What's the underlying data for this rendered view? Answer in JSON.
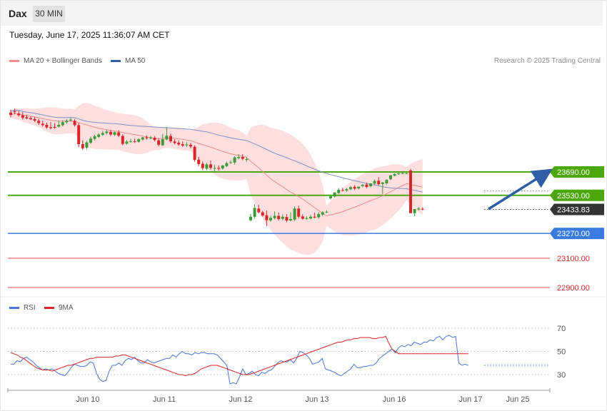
{
  "header": {
    "symbol": "Dax",
    "timeframe": "30 MIN",
    "datetime": "Tuesday, June 17, 2025 11:36:07 AM CET"
  },
  "legend": {
    "ma20_label": "MA 20 + Bollinger Bands",
    "ma50_label": "MA 50",
    "credit": "Research © 2025 Trading Central",
    "rsi_label": "RSI",
    "rsi_ma_label": "9MA"
  },
  "colors": {
    "up": "#3d9b35",
    "down": "#d9262a",
    "bollinger_fill": "#fdd9da",
    "ma20": "#f08c8c",
    "ma50": "#7f8fc4",
    "resistance": "#4ca70a",
    "support": "#3a7be0",
    "lower_support": "#e98888",
    "last_price": "#333333",
    "arrow": "#2e5ea6"
  },
  "chart_data": [
    {
      "type": "line",
      "title": "",
      "x_ticks": [
        "Jun 10",
        "Jun 11",
        "Jun 12",
        "Jun 13",
        "Jun 16",
        "Jun 17",
        "Jun 25"
      ],
      "levels": [
        {
          "name": "resistance-2",
          "value": 23690.0,
          "label": "23690.00",
          "style": "resistance"
        },
        {
          "name": "resistance-1",
          "value": 23530.0,
          "label": "23530.00",
          "style": "resistance"
        },
        {
          "name": "last-price",
          "value": 23433.83,
          "label": "23433.83",
          "style": "last"
        },
        {
          "name": "support-1",
          "value": 23270.0,
          "label": "23270.00",
          "style": "support"
        },
        {
          "name": "support-2",
          "value": 23100.0,
          "label": "23100.00",
          "style": "lower"
        },
        {
          "name": "support-3",
          "value": 22900.0,
          "label": "22900.00",
          "style": "lower"
        }
      ],
      "ylim": [
        22880,
        24160
      ],
      "candles": [
        [
          24096,
          24116,
          24080,
          24064
        ],
        [
          24106,
          24123,
          24098,
          24084
        ],
        [
          24090,
          24108,
          24078,
          24068
        ],
        [
          24078,
          24100,
          24060,
          24048
        ],
        [
          24064,
          24082,
          24056,
          24050
        ],
        [
          24058,
          24070,
          24050,
          24044
        ],
        [
          24052,
          24068,
          24040,
          24032
        ],
        [
          24040,
          24054,
          24024,
          24012
        ],
        [
          24020,
          24040,
          24010,
          24000
        ],
        [
          24012,
          24028,
          23994,
          23986
        ],
        [
          23996,
          24032,
          23990,
          23982
        ],
        [
          23998,
          24024,
          23992,
          23986
        ],
        [
          24000,
          24040,
          24012,
          23994
        ],
        [
          24010,
          24044,
          24030,
          24002
        ],
        [
          24030,
          24050,
          24040,
          24020
        ],
        [
          24042,
          24060,
          24048,
          24034
        ],
        [
          24040,
          24052,
          24010,
          24000
        ],
        [
          24010,
          24026,
          23880,
          23860
        ],
        [
          23880,
          23906,
          23852,
          23840
        ],
        [
          23856,
          23902,
          23892,
          23846
        ],
        [
          23890,
          23932,
          23918,
          23880
        ],
        [
          23916,
          23944,
          23934,
          23906
        ],
        [
          23930,
          23956,
          23946,
          23922
        ],
        [
          23944,
          23970,
          23956,
          23936
        ],
        [
          23956,
          23980,
          23966,
          23946
        ],
        [
          23964,
          23978,
          23946,
          23936
        ],
        [
          23944,
          23966,
          23962,
          23936
        ],
        [
          23960,
          23976,
          23938,
          23928
        ],
        [
          23936,
          23948,
          23882,
          23872
        ],
        [
          23884,
          23908,
          23898,
          23876
        ],
        [
          23896,
          23916,
          23900,
          23890
        ],
        [
          23900,
          23918,
          23896,
          23888
        ],
        [
          23896,
          23920,
          23914,
          23890
        ],
        [
          23912,
          23930,
          23926,
          23904
        ],
        [
          23926,
          23940,
          23920,
          23912
        ],
        [
          23920,
          23936,
          23926,
          23914
        ],
        [
          23924,
          23936,
          23908,
          23898
        ],
        [
          23906,
          23920,
          23876,
          23864
        ],
        [
          23872,
          23950,
          23914,
          23868
        ],
        [
          23912,
          23996,
          23938,
          23906
        ],
        [
          23936,
          23952,
          23900,
          23888
        ],
        [
          23898,
          23914,
          23888,
          23878
        ],
        [
          23890,
          23906,
          23878,
          23868
        ],
        [
          23880,
          23900,
          23870,
          23860
        ],
        [
          23872,
          23894,
          23878,
          23860
        ],
        [
          23876,
          23890,
          23864,
          23852
        ],
        [
          23862,
          23872,
          23772,
          23760
        ],
        [
          23774,
          23794,
          23744,
          23730
        ],
        [
          23746,
          23762,
          23716,
          23702
        ],
        [
          23712,
          23752,
          23742,
          23702
        ],
        [
          23742,
          23768,
          23718,
          23706
        ],
        [
          23718,
          23738,
          23718,
          23696
        ],
        [
          23718,
          23736,
          23712,
          23700
        ],
        [
          23714,
          23738,
          23734,
          23706
        ],
        [
          23730,
          23760,
          23750,
          23724
        ],
        [
          23752,
          23768,
          23756,
          23746
        ],
        [
          23754,
          23798,
          23790,
          23742
        ],
        [
          23784,
          23812,
          23792,
          23776
        ],
        [
          23792,
          23812,
          23780,
          23770
        ],
        [
          23772,
          23792,
          23778,
          23760
        ],
        [
          23360,
          23402,
          23384,
          23352
        ],
        [
          23384,
          23468,
          23444,
          23370
        ],
        [
          23440,
          23466,
          23414,
          23406
        ],
        [
          23414,
          23424,
          23392,
          23384
        ],
        [
          23394,
          23426,
          23360,
          23320
        ],
        [
          23360,
          23392,
          23376,
          23350
        ],
        [
          23374,
          23420,
          23390,
          23366
        ],
        [
          23390,
          23412,
          23368,
          23358
        ],
        [
          23370,
          23400,
          23384,
          23360
        ],
        [
          23382,
          23402,
          23358,
          23346
        ],
        [
          23358,
          23414,
          23368,
          23352
        ],
        [
          23364,
          23456,
          23440,
          23356
        ],
        [
          23440,
          23460,
          23384,
          23372
        ],
        [
          23386,
          23400,
          23370,
          23364
        ],
        [
          23372,
          23388,
          23374,
          23364
        ],
        [
          23372,
          23396,
          23384,
          23366
        ],
        [
          23384,
          23412,
          23378,
          23374
        ],
        [
          23380,
          23414,
          23402,
          23370
        ],
        [
          23398,
          23422,
          23414,
          23390
        ],
        [
          23414,
          23428,
          23418,
          23408
        ],
        [
          23510,
          23528,
          23524,
          23502
        ],
        [
          23522,
          23540,
          23550,
          23514
        ],
        [
          23546,
          23580,
          23568,
          23538
        ],
        [
          23566,
          23582,
          23564,
          23556
        ],
        [
          23564,
          23580,
          23572,
          23554
        ],
        [
          23572,
          23594,
          23586,
          23566
        ],
        [
          23588,
          23600,
          23576,
          23566
        ],
        [
          23578,
          23590,
          23590,
          23570
        ],
        [
          23594,
          23606,
          23602,
          23586
        ],
        [
          23604,
          23618,
          23588,
          23578
        ],
        [
          23592,
          23612,
          23612,
          23586
        ],
        [
          23610,
          23638,
          23628,
          23602
        ],
        [
          23630,
          23654,
          23606,
          23598
        ],
        [
          23608,
          23622,
          23618,
          23540
        ],
        [
          23612,
          23640,
          23636,
          23604
        ],
        [
          23640,
          23660,
          23668,
          23634
        ],
        [
          23664,
          23680,
          23676,
          23660
        ],
        [
          23676,
          23688,
          23680,
          23670
        ],
        [
          23678,
          23690,
          23682,
          23674
        ],
        [
          23680,
          23686,
          23680,
          23676
        ],
        [
          23700,
          23712,
          23408,
          23410
        ],
        [
          23408,
          23420,
          23436,
          23388
        ],
        [
          23434,
          23450,
          23440,
          23426
        ],
        [
          23438,
          23448,
          23433,
          23428
        ]
      ]
    },
    {
      "type": "line",
      "title": "",
      "series": [
        {
          "name": "RSI",
          "values": [
            39,
            39,
            42,
            41,
            44,
            45,
            43,
            41,
            38,
            36,
            34,
            35,
            34,
            35,
            33,
            31,
            30,
            29,
            32,
            36,
            39,
            38,
            37,
            37,
            38,
            41,
            40,
            31,
            26,
            24,
            25,
            33,
            38,
            38,
            40,
            38,
            42,
            44,
            43,
            45,
            42,
            40,
            40,
            43,
            41,
            40,
            41,
            42,
            43,
            44,
            44,
            47,
            45,
            48,
            50,
            48,
            48,
            47,
            49,
            48,
            49,
            49,
            48,
            48,
            48,
            47,
            44,
            41,
            38,
            22,
            23,
            22,
            28,
            35,
            30,
            31,
            33,
            30,
            29,
            32,
            31,
            33,
            34,
            37,
            40,
            42,
            41,
            41,
            43,
            40,
            44,
            50,
            49,
            47,
            44,
            39,
            40,
            41,
            44,
            35,
            34,
            33,
            32,
            30,
            29,
            31,
            33,
            35,
            39,
            36,
            36,
            37,
            37,
            38,
            38,
            40,
            44,
            46,
            48,
            50,
            52,
            49,
            53,
            55,
            54,
            56,
            55,
            58,
            57,
            56,
            58,
            58,
            60,
            59,
            62,
            63,
            60,
            63,
            64,
            62,
            63,
            40,
            38,
            39,
            38
          ]
        },
        {
          "name": "9MA",
          "values": [
            49,
            48,
            47,
            45,
            44,
            42,
            40,
            38,
            36,
            35,
            34,
            34,
            34,
            33,
            34,
            35,
            36,
            37,
            38,
            38,
            39,
            40,
            41,
            42,
            43,
            44,
            44,
            45,
            45,
            45,
            45,
            45,
            45,
            46,
            46,
            47,
            47,
            46,
            45,
            44,
            43,
            42,
            41,
            40,
            39,
            38,
            37,
            36,
            35,
            34,
            33,
            32,
            31,
            30,
            30,
            29,
            30,
            30,
            31,
            33,
            35,
            36,
            37,
            38,
            38,
            38,
            37,
            36,
            35,
            34,
            33,
            32,
            31,
            30,
            30,
            30,
            31,
            32,
            33,
            34,
            35,
            36,
            37,
            38,
            39,
            40,
            41,
            42,
            43,
            44,
            45,
            46,
            47,
            48,
            49,
            50,
            51,
            52,
            53,
            54,
            55,
            56,
            57,
            58,
            58,
            59,
            60,
            60,
            61,
            61,
            62,
            62,
            62,
            62,
            61,
            61,
            62,
            62,
            63,
            57,
            52,
            50,
            48,
            48,
            48,
            48,
            48,
            48,
            48,
            48,
            48,
            48,
            48,
            48,
            48,
            48,
            48,
            48,
            48,
            48,
            48,
            48,
            48,
            48,
            48
          ]
        }
      ],
      "y_ticks": [
        30,
        50,
        70
      ],
      "ylim": [
        15,
        85
      ]
    }
  ]
}
